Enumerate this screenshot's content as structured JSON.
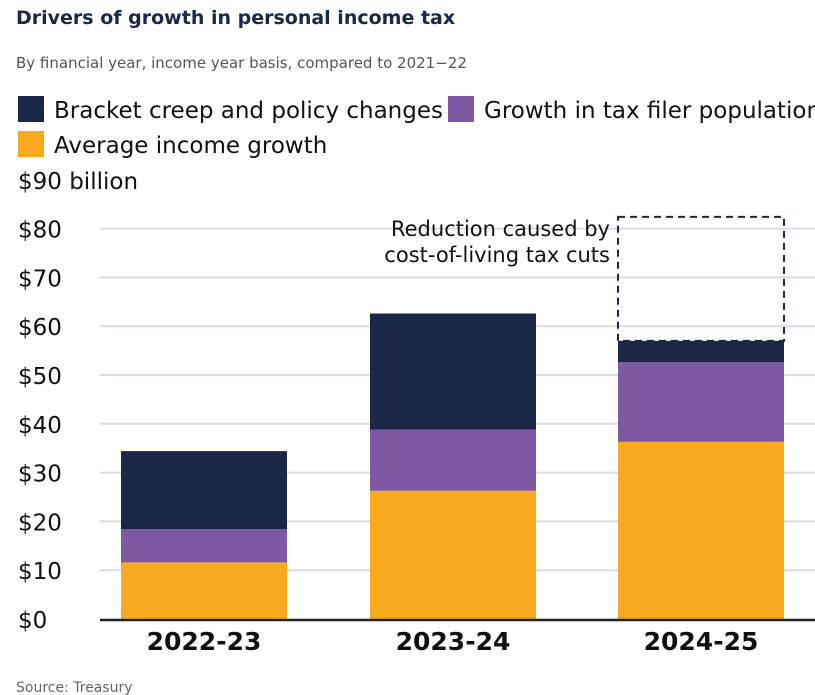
{
  "chart_data": {
    "type": "bar",
    "stacked": true,
    "title": "Drivers of growth in personal income tax",
    "subtitle": "By financial year, income year basis, compared to 2021−22",
    "ylabel": "$90 billion",
    "ylim": [
      0,
      90
    ],
    "yticks": [
      0,
      10,
      20,
      30,
      40,
      50,
      60,
      70,
      80,
      90
    ],
    "ytick_labels": [
      "$0",
      "$10",
      "$20",
      "$30",
      "$40",
      "$50",
      "$60",
      "$70",
      "$80",
      "$90 billion"
    ],
    "categories": [
      "2022-23",
      "2023-24",
      "2024-25"
    ],
    "series": [
      {
        "name": "Average income growth",
        "color": "#f9a91e",
        "values": [
          11.6,
          26.3,
          36.3
        ]
      },
      {
        "name": "Growth in tax filer population",
        "color": "#7f58a3",
        "values": [
          6.8,
          12.5,
          16.3
        ]
      },
      {
        "name": "Bracket creep and policy changes",
        "color": "#1b2749",
        "values": [
          16.0,
          23.8,
          4.4
        ]
      }
    ],
    "legend_order": [
      "Bracket creep and policy changes",
      "Growth in tax filer population",
      "Average income growth"
    ],
    "legend_placement": "top",
    "grid": true,
    "annotation": {
      "lines": [
        "Reduction caused by",
        "cost-of-living tax cuts"
      ],
      "category": "2024-25",
      "from": 57.0,
      "to": 82.4,
      "style": "dashed"
    },
    "source": "Source: Treasury"
  }
}
